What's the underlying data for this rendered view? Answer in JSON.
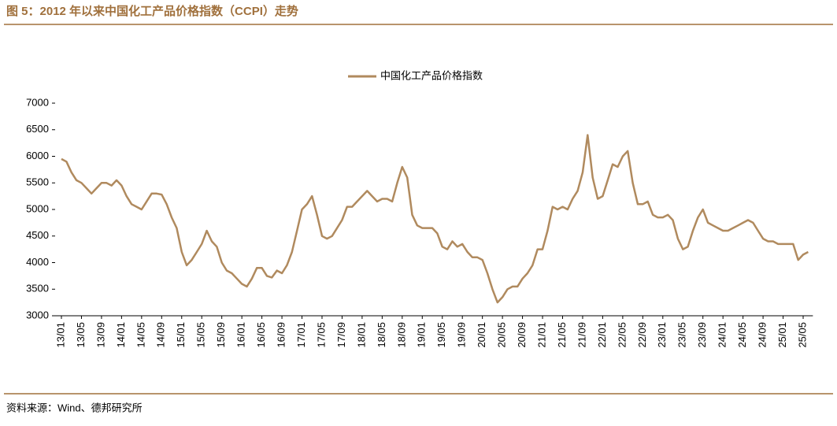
{
  "title": "图 5：2012 年以来中国化工产品价格指数（CCPI）走势",
  "source": "资料来源：Wind、德邦研究所",
  "chart_data": {
    "type": "line",
    "categories": [
      "13/01",
      null,
      null,
      null,
      "13/05",
      null,
      null,
      null,
      "13/09",
      null,
      null,
      null,
      "14/01",
      null,
      null,
      null,
      "14/05",
      null,
      null,
      null,
      "14/09",
      null,
      null,
      null,
      "15/01",
      null,
      null,
      null,
      "15/05",
      null,
      null,
      null,
      "15/09",
      null,
      null,
      null,
      "16/01",
      null,
      null,
      null,
      "16/05",
      null,
      null,
      null,
      "16/09",
      null,
      null,
      null,
      "17/01",
      null,
      null,
      null,
      "17/05",
      null,
      null,
      null,
      "17/09",
      null,
      null,
      null,
      "18/01",
      null,
      null,
      null,
      "18/05",
      null,
      null,
      null,
      "18/09",
      null,
      null,
      null,
      "19/01",
      null,
      null,
      null,
      "19/05",
      null,
      null,
      null,
      "19/09",
      null,
      null,
      null,
      "20/01",
      null,
      null,
      null,
      "20/05",
      null,
      null,
      null,
      "20/09",
      null,
      null,
      null,
      "21/01",
      null,
      null,
      null,
      "21/05",
      null,
      null,
      null,
      "21/09",
      null,
      null,
      null,
      "22/01",
      null,
      null,
      null,
      "22/05",
      null,
      null,
      null,
      "22/09",
      null,
      null,
      null,
      "23/01",
      null,
      null,
      null,
      "23/05",
      null,
      null,
      null,
      "23/09",
      null,
      null,
      null,
      "24/01",
      null,
      null,
      null,
      "24/05",
      null,
      null,
      null,
      "24/09",
      null,
      null,
      null,
      "25/01",
      null,
      null,
      null,
      "25/05",
      null
    ],
    "series": [
      {
        "name": "中国化工产品价格指数",
        "color": "#b08a5e",
        "values": [
          5950,
          5900,
          5700,
          5550,
          5500,
          5400,
          5300,
          5400,
          5500,
          5500,
          5450,
          5550,
          5450,
          5250,
          5100,
          5050,
          5000,
          5150,
          5300,
          5300,
          5280,
          5100,
          4850,
          4650,
          4200,
          3950,
          4050,
          4200,
          4350,
          4600,
          4400,
          4300,
          4000,
          3850,
          3800,
          3700,
          3600,
          3550,
          3700,
          3900,
          3900,
          3750,
          3720,
          3850,
          3800,
          3950,
          4200,
          4600,
          5000,
          5100,
          5250,
          4900,
          4500,
          4450,
          4500,
          4650,
          4800,
          5050,
          5050,
          5150,
          5250,
          5350,
          5250,
          5150,
          5200,
          5200,
          5150,
          5500,
          5800,
          5600,
          4900,
          4700,
          4650,
          4650,
          4650,
          4550,
          4300,
          4250,
          4400,
          4300,
          4350,
          4200,
          4100,
          4100,
          4050,
          3800,
          3500,
          3250,
          3350,
          3500,
          3550,
          3550,
          3700,
          3800,
          3950,
          4250,
          4250,
          4600,
          5050,
          5000,
          5050,
          5000,
          5200,
          5350,
          5700,
          6400,
          5600,
          5200,
          5250,
          5550,
          5850,
          5800,
          6000,
          6100,
          5500,
          5100,
          5100,
          5150,
          4900,
          4850,
          4850,
          4900,
          4800,
          4450,
          4250,
          4300,
          4600,
          4850,
          5000,
          4750,
          4700,
          4650,
          4600,
          4600,
          4650,
          4700,
          4750,
          4800,
          4750,
          4600,
          4450,
          4400,
          4400,
          4350,
          4350,
          4350,
          4350,
          4050,
          4150,
          4200
        ]
      }
    ],
    "ylim": [
      3000,
      7000
    ],
    "yticks": [
      3000,
      3500,
      4000,
      4500,
      5000,
      5500,
      6000,
      6500,
      7000
    ],
    "legend": "top"
  }
}
